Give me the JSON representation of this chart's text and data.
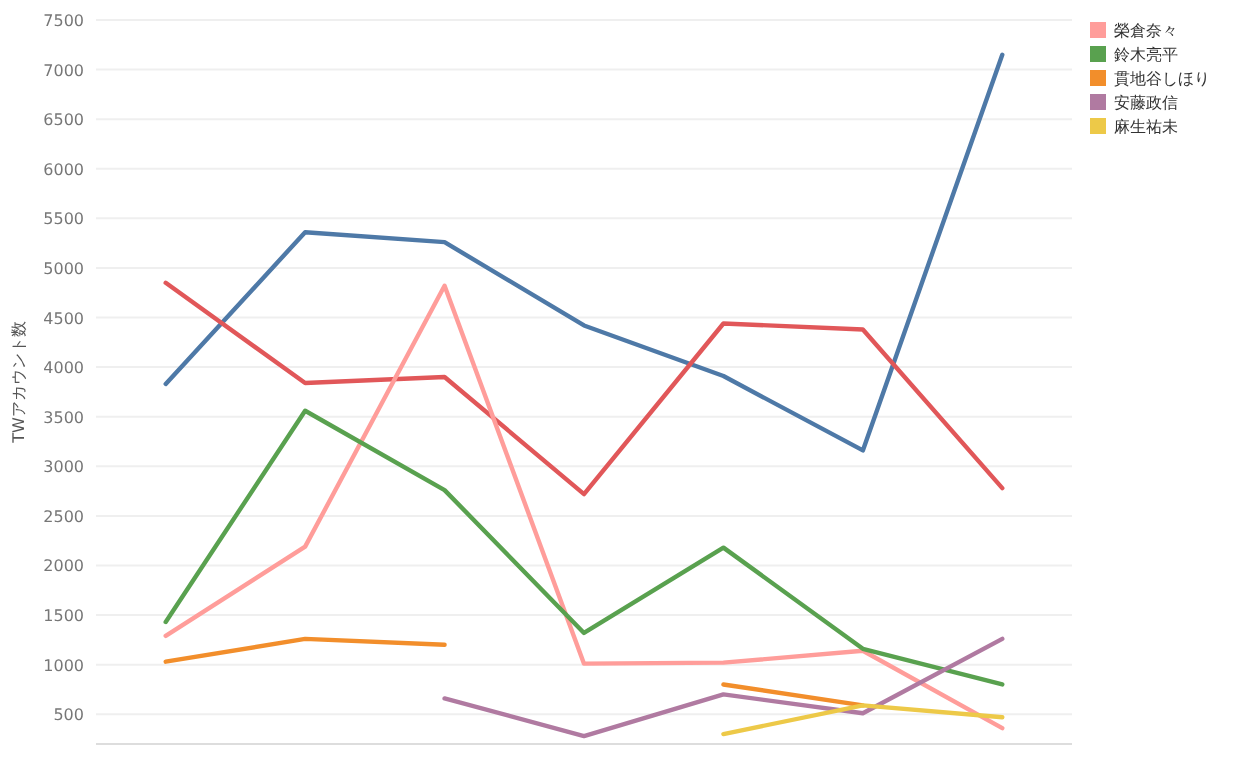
{
  "chart_data": {
    "type": "line",
    "ylabel": "TWアカウント数",
    "categories": [
      null,
      null,
      null,
      null,
      null,
      null,
      null
    ],
    "ylim": [
      200,
      7500
    ],
    "yticks": [
      500,
      1000,
      1500,
      2000,
      2500,
      3000,
      3500,
      4000,
      4500,
      5000,
      5500,
      6000,
      6500,
      7000,
      7500
    ],
    "grid": "y",
    "legend": "top right",
    "tick_labels": "y",
    "series": [
      {
        "color": "#4e79a7",
        "values": [
          3830,
          5360,
          5260,
          4420,
          3910,
          3160,
          7150
        ]
      },
      {
        "color": "#e15759",
        "values": [
          4850,
          3840,
          3900,
          2720,
          4440,
          4380,
          2780
        ]
      },
      {
        "name": "榮倉奈々",
        "color": "#ff9d9a",
        "values": [
          1290,
          2190,
          4820,
          1010,
          1020,
          1140,
          360
        ]
      },
      {
        "name": "鈴木亮平",
        "color": "#59a14f",
        "values": [
          1430,
          3560,
          2760,
          1320,
          2180,
          1160,
          800
        ]
      },
      {
        "name": "貫地谷しほり",
        "color": "#f28e2b",
        "values": [
          1030,
          1260,
          1200,
          null,
          800,
          590,
          null
        ]
      },
      {
        "name": "安藤政信",
        "color": "#b07aa1",
        "values": [
          null,
          null,
          660,
          280,
          700,
          510,
          1260
        ]
      },
      {
        "name": "麻生祐未",
        "color": "#edc948",
        "values": [
          null,
          null,
          null,
          null,
          300,
          590,
          470
        ]
      }
    ]
  }
}
